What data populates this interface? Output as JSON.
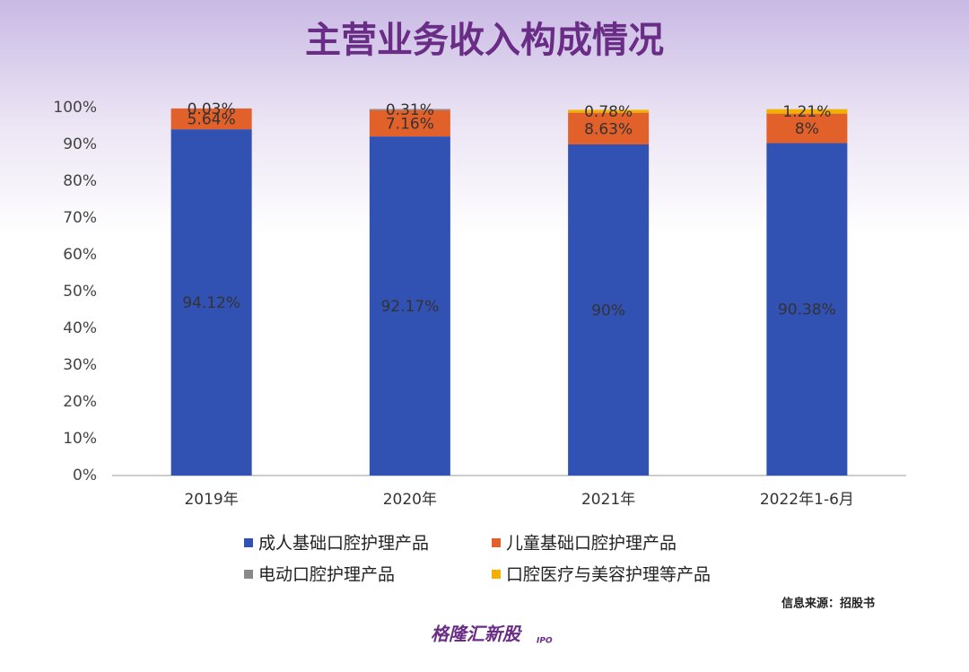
{
  "chart_data": {
    "type": "stacked_bar",
    "title": "主营业务收入构成情况",
    "categories": [
      "2019年",
      "2020年",
      "2021年",
      "2022年1-6月"
    ],
    "series": [
      {
        "name": "成人基础口腔护理产品",
        "color": "#3151b3",
        "values": [
          94.12,
          92.17,
          90,
          90.38
        ],
        "value_labels": [
          "94.12%",
          "92.17%",
          "90%",
          "90.38%"
        ]
      },
      {
        "name": "儿童基础口腔护理产品",
        "color": "#e2602a",
        "values": [
          5.64,
          7.16,
          8.63,
          8
        ],
        "value_labels": [
          "5.64%",
          "7.16%",
          "8.63%",
          "8%"
        ]
      },
      {
        "name": "电动口腔护理产品",
        "color": "#8a8a8a",
        "values": [
          0.03,
          0.31,
          null,
          null
        ],
        "value_labels": [
          "0.03%",
          "0.31%",
          null,
          null
        ]
      },
      {
        "name": "口腔医疗与美容护理等产品",
        "color": "#f2b000",
        "values": [
          null,
          null,
          0.78,
          1.21
        ],
        "value_labels": [
          null,
          null,
          "0.78%",
          "1.21%"
        ]
      }
    ],
    "ylim": [
      0,
      100
    ],
    "yticks": [
      {
        "value": 0,
        "label": "0%"
      },
      {
        "value": 10,
        "label": "10%"
      },
      {
        "value": 20,
        "label": "20%"
      },
      {
        "value": 30,
        "label": "30%"
      },
      {
        "value": 40,
        "label": "40%"
      },
      {
        "value": 50,
        "label": "50%"
      },
      {
        "value": 60,
        "label": "60%"
      },
      {
        "value": 70,
        "label": "70%"
      },
      {
        "value": 80,
        "label": "80%"
      },
      {
        "value": 90,
        "label": "90%"
      },
      {
        "value": 100,
        "label": "100%"
      }
    ],
    "grid": false,
    "source": "信息来源：招股书",
    "watermark": "格隆汇新股",
    "logo": "格隆汇新股",
    "logo_sub": "IPO"
  }
}
